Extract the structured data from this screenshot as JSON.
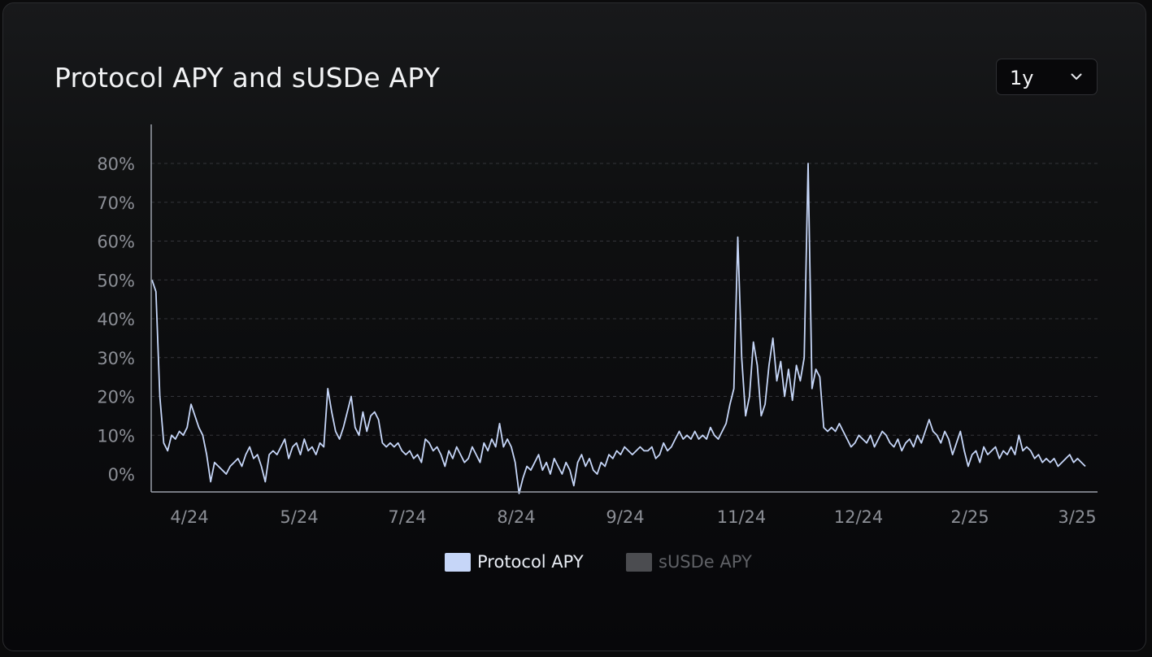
{
  "title": "Protocol APY and sUSDe APY",
  "range_select": {
    "value": "1y"
  },
  "colors": {
    "protocol": "#c6d6f8",
    "susde": "#4b4c50",
    "axis": "#9aa0aa",
    "grid": "#34353a",
    "tick_text": "#8c8f96"
  },
  "legend": [
    {
      "name": "Protocol APY",
      "color": "#c6d6f8",
      "text_color": "#e8ecf4"
    },
    {
      "name": "sUSDe APY",
      "color": "#4b4c50",
      "text_color": "#5f6166"
    }
  ],
  "chart_data": {
    "type": "line",
    "y_ticks": [
      "0%",
      "10%",
      "20%",
      "30%",
      "40%",
      "50%",
      "60%",
      "70%",
      "80%"
    ],
    "x_ticks": [
      "4/24",
      "5/24",
      "7/24",
      "8/24",
      "9/24",
      "11/24",
      "12/24",
      "2/25",
      "3/25"
    ],
    "ylim": [
      -5,
      90
    ],
    "y_unit": "%",
    "grid": "horizontal-dashed",
    "legend_position": "bottom-center",
    "series": [
      {
        "name": "Protocol APY",
        "points": [
          [
            0,
            50
          ],
          [
            1,
            47
          ],
          [
            2,
            20
          ],
          [
            3,
            8
          ],
          [
            4,
            6
          ],
          [
            5,
            10
          ],
          [
            6,
            9
          ],
          [
            7,
            11
          ],
          [
            8,
            10
          ],
          [
            9,
            12
          ],
          [
            10,
            18
          ],
          [
            11,
            15
          ],
          [
            12,
            12
          ],
          [
            13,
            10
          ],
          [
            14,
            5
          ],
          [
            15,
            -2
          ],
          [
            16,
            3
          ],
          [
            17,
            2
          ],
          [
            18,
            1
          ],
          [
            19,
            0
          ],
          [
            20,
            2
          ],
          [
            21,
            3
          ],
          [
            22,
            4
          ],
          [
            23,
            2
          ],
          [
            24,
            5
          ],
          [
            25,
            7
          ],
          [
            26,
            4
          ],
          [
            27,
            5
          ],
          [
            28,
            2
          ],
          [
            29,
            -2
          ],
          [
            30,
            5
          ],
          [
            31,
            6
          ],
          [
            32,
            5
          ],
          [
            33,
            7
          ],
          [
            34,
            9
          ],
          [
            35,
            4
          ],
          [
            36,
            7
          ],
          [
            37,
            8
          ],
          [
            38,
            5
          ],
          [
            39,
            9
          ],
          [
            40,
            6
          ],
          [
            41,
            7
          ],
          [
            42,
            5
          ],
          [
            43,
            8
          ],
          [
            44,
            7
          ],
          [
            45,
            22
          ],
          [
            46,
            16
          ],
          [
            47,
            11
          ],
          [
            48,
            9
          ],
          [
            49,
            12
          ],
          [
            50,
            16
          ],
          [
            51,
            20
          ],
          [
            52,
            12
          ],
          [
            53,
            10
          ],
          [
            54,
            16
          ],
          [
            55,
            11
          ],
          [
            56,
            15
          ],
          [
            57,
            16
          ],
          [
            58,
            14
          ],
          [
            59,
            8
          ],
          [
            60,
            7
          ],
          [
            61,
            8
          ],
          [
            62,
            7
          ],
          [
            63,
            8
          ],
          [
            64,
            6
          ],
          [
            65,
            5
          ],
          [
            66,
            6
          ],
          [
            67,
            4
          ],
          [
            68,
            5
          ],
          [
            69,
            3
          ],
          [
            70,
            9
          ],
          [
            71,
            8
          ],
          [
            72,
            6
          ],
          [
            73,
            7
          ],
          [
            74,
            5
          ],
          [
            75,
            2
          ],
          [
            76,
            6
          ],
          [
            77,
            4
          ],
          [
            78,
            7
          ],
          [
            79,
            5
          ],
          [
            80,
            3
          ],
          [
            81,
            4
          ],
          [
            82,
            7
          ],
          [
            83,
            5
          ],
          [
            84,
            3
          ],
          [
            85,
            8
          ],
          [
            86,
            6
          ],
          [
            87,
            9
          ],
          [
            88,
            7
          ],
          [
            89,
            13
          ],
          [
            90,
            7
          ],
          [
            91,
            9
          ],
          [
            92,
            7
          ],
          [
            93,
            3
          ],
          [
            94,
            -5
          ],
          [
            95,
            -1
          ],
          [
            96,
            2
          ],
          [
            97,
            1
          ],
          [
            98,
            3
          ],
          [
            99,
            5
          ],
          [
            100,
            1
          ],
          [
            101,
            3
          ],
          [
            102,
            0
          ],
          [
            103,
            4
          ],
          [
            104,
            2
          ],
          [
            105,
            0
          ],
          [
            106,
            3
          ],
          [
            107,
            1
          ],
          [
            108,
            -3
          ],
          [
            109,
            3
          ],
          [
            110,
            5
          ],
          [
            111,
            2
          ],
          [
            112,
            4
          ],
          [
            113,
            1
          ],
          [
            114,
            0
          ],
          [
            115,
            3
          ],
          [
            116,
            2
          ],
          [
            117,
            5
          ],
          [
            118,
            4
          ],
          [
            119,
            6
          ],
          [
            120,
            5
          ],
          [
            121,
            7
          ],
          [
            122,
            6
          ],
          [
            123,
            5
          ],
          [
            124,
            6
          ],
          [
            125,
            7
          ],
          [
            126,
            6
          ],
          [
            127,
            6
          ],
          [
            128,
            7
          ],
          [
            129,
            4
          ],
          [
            130,
            5
          ],
          [
            131,
            8
          ],
          [
            132,
            6
          ],
          [
            133,
            7
          ],
          [
            134,
            9
          ],
          [
            135,
            11
          ],
          [
            136,
            9
          ],
          [
            137,
            10
          ],
          [
            138,
            9
          ],
          [
            139,
            11
          ],
          [
            140,
            9
          ],
          [
            141,
            10
          ],
          [
            142,
            9
          ],
          [
            143,
            12
          ],
          [
            144,
            10
          ],
          [
            145,
            9
          ],
          [
            146,
            11
          ],
          [
            147,
            13
          ],
          [
            148,
            18
          ],
          [
            149,
            22
          ],
          [
            150,
            61
          ],
          [
            151,
            30
          ],
          [
            152,
            15
          ],
          [
            153,
            20
          ],
          [
            154,
            34
          ],
          [
            155,
            28
          ],
          [
            156,
            15
          ],
          [
            157,
            18
          ],
          [
            158,
            28
          ],
          [
            159,
            35
          ],
          [
            160,
            24
          ],
          [
            161,
            29
          ],
          [
            162,
            20
          ],
          [
            163,
            27
          ],
          [
            164,
            19
          ],
          [
            165,
            28
          ],
          [
            166,
            24
          ],
          [
            167,
            30
          ],
          [
            168,
            80
          ],
          [
            169,
            22
          ],
          [
            170,
            27
          ],
          [
            171,
            25
          ],
          [
            172,
            12
          ],
          [
            173,
            11
          ],
          [
            174,
            12
          ],
          [
            175,
            11
          ],
          [
            176,
            13
          ],
          [
            177,
            11
          ],
          [
            178,
            9
          ],
          [
            179,
            7
          ],
          [
            180,
            8
          ],
          [
            181,
            10
          ],
          [
            182,
            9
          ],
          [
            183,
            8
          ],
          [
            184,
            10
          ],
          [
            185,
            7
          ],
          [
            186,
            9
          ],
          [
            187,
            11
          ],
          [
            188,
            10
          ],
          [
            189,
            8
          ],
          [
            190,
            7
          ],
          [
            191,
            9
          ],
          [
            192,
            6
          ],
          [
            193,
            8
          ],
          [
            194,
            9
          ],
          [
            195,
            7
          ],
          [
            196,
            10
          ],
          [
            197,
            8
          ],
          [
            198,
            11
          ],
          [
            199,
            14
          ],
          [
            200,
            11
          ],
          [
            201,
            10
          ],
          [
            202,
            8
          ],
          [
            203,
            11
          ],
          [
            204,
            9
          ],
          [
            205,
            5
          ],
          [
            206,
            8
          ],
          [
            207,
            11
          ],
          [
            208,
            6
          ],
          [
            209,
            2
          ],
          [
            210,
            5
          ],
          [
            211,
            6
          ],
          [
            212,
            3
          ],
          [
            213,
            7
          ],
          [
            214,
            5
          ],
          [
            215,
            6
          ],
          [
            216,
            7
          ],
          [
            217,
            4
          ],
          [
            218,
            6
          ],
          [
            219,
            5
          ],
          [
            220,
            7
          ],
          [
            221,
            5
          ],
          [
            222,
            10
          ],
          [
            223,
            6
          ],
          [
            224,
            7
          ],
          [
            225,
            6
          ],
          [
            226,
            4
          ],
          [
            227,
            5
          ],
          [
            228,
            3
          ],
          [
            229,
            4
          ],
          [
            230,
            3
          ],
          [
            231,
            4
          ],
          [
            232,
            2
          ],
          [
            233,
            3
          ],
          [
            234,
            4
          ],
          [
            235,
            5
          ],
          [
            236,
            3
          ],
          [
            237,
            4
          ],
          [
            238,
            3
          ],
          [
            239,
            2
          ]
        ]
      },
      {
        "name": "sUSDe APY",
        "points": []
      }
    ]
  }
}
